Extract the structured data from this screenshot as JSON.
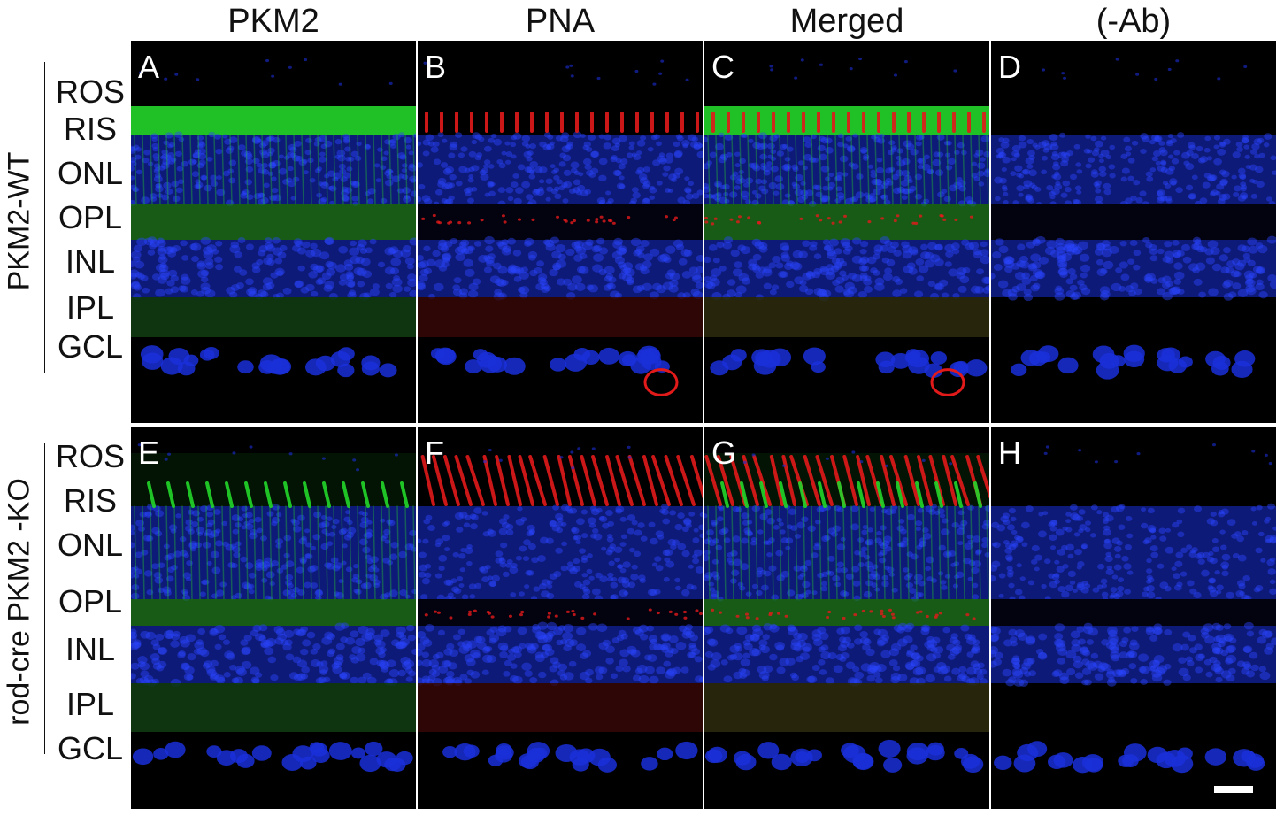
{
  "columns": [
    "PKM2",
    "PNA",
    "Merged",
    "(-Ab)"
  ],
  "rows": [
    {
      "label": "PKM2-WT",
      "layers": [
        "ROS",
        "RIS",
        "ONL",
        "OPL",
        "INL",
        "IPL",
        "GCL"
      ],
      "panels": [
        {
          "letter": "A",
          "stain": "green"
        },
        {
          "letter": "B",
          "stain": "red"
        },
        {
          "letter": "C",
          "stain": "merged"
        },
        {
          "letter": "D",
          "stain": "none"
        }
      ]
    },
    {
      "label": "rod-cre PKM2 -KO",
      "layers": [
        "ROS",
        "RIS",
        "ONL",
        "OPL",
        "INL",
        "IPL",
        "GCL"
      ],
      "panels": [
        {
          "letter": "E",
          "stain": "green"
        },
        {
          "letter": "F",
          "stain": "red"
        },
        {
          "letter": "G",
          "stain": "merged"
        },
        {
          "letter": "H",
          "stain": "none"
        }
      ]
    }
  ],
  "colors": {
    "nuclei": "#1a2fd8",
    "pkm2": "#22d62a",
    "pna": "#e21a1a",
    "background": "#000000"
  }
}
